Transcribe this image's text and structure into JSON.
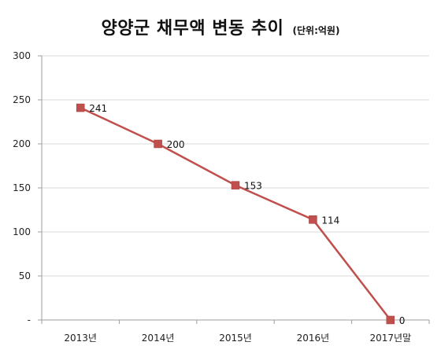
{
  "chart_data": {
    "type": "line",
    "title": "양양군 채무액 변동 추이",
    "subtitle": "(단위:억원)",
    "categories": [
      "2013년",
      "2014년",
      "2015년",
      "2016년",
      "2017년말"
    ],
    "values": [
      241,
      200,
      153,
      114,
      0
    ],
    "data_labels": [
      "241",
      "200",
      "153",
      "114",
      "0"
    ],
    "y_ticks": [
      {
        "value": 0,
        "label": "-"
      },
      {
        "value": 50,
        "label": "50"
      },
      {
        "value": 100,
        "label": "100"
      },
      {
        "value": 150,
        "label": "150"
      },
      {
        "value": 200,
        "label": "200"
      },
      {
        "value": 250,
        "label": "250"
      },
      {
        "value": 300,
        "label": "300"
      }
    ],
    "ylim": [
      0,
      300
    ],
    "grid": true,
    "legend": "none",
    "series_color": "#c0504d",
    "marker": "square"
  }
}
